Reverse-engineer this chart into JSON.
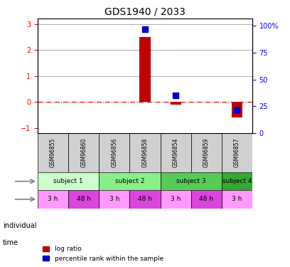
{
  "title": "GDS1940 / 2033",
  "samples": [
    "GSM96855",
    "GSM96860",
    "GSM96856",
    "GSM96858",
    "GSM96854",
    "GSM96859",
    "GSM96857"
  ],
  "log_ratio": [
    0,
    0,
    0,
    2.5,
    -0.1,
    0,
    -0.6
  ],
  "percentile_rank": [
    null,
    null,
    null,
    97,
    35,
    null,
    22
  ],
  "ylim_left": [
    -1.2,
    3.2
  ],
  "ylim_right": [
    0,
    106.67
  ],
  "yticks_left": [
    -1,
    0,
    1,
    2,
    3
  ],
  "yticks_right": [
    0,
    25,
    50,
    75,
    100
  ],
  "ytick_labels_right": [
    "0",
    "25",
    "50",
    "75",
    "100%"
  ],
  "hlines": [
    0,
    1,
    2,
    3
  ],
  "bar_color": "#c00000",
  "dot_color": "#0000cc",
  "zero_line_color": "#cc0000",
  "subjects": [
    {
      "label": "subject 1",
      "start": 0,
      "end": 2,
      "color": "#ccffcc"
    },
    {
      "label": "subject 2",
      "start": 2,
      "end": 4,
      "color": "#66ee66"
    },
    {
      "label": "subject 3",
      "start": 4,
      "end": 6,
      "color": "#66ee66"
    },
    {
      "label": "subject 4",
      "start": 6,
      "end": 7,
      "color": "#44cc44"
    }
  ],
  "times": [
    {
      "label": "3 h",
      "start": 0,
      "end": 1,
      "color": "#ff88ff"
    },
    {
      "label": "48 h",
      "start": 1,
      "end": 2,
      "color": "#ee44ee"
    },
    {
      "label": "3 h",
      "start": 2,
      "end": 3,
      "color": "#ff88ff"
    },
    {
      "label": "48 h",
      "start": 3,
      "end": 4,
      "color": "#ee44ee"
    },
    {
      "label": "3 h",
      "start": 4,
      "end": 5,
      "color": "#ff88ff"
    },
    {
      "label": "48 h",
      "start": 5,
      "end": 6,
      "color": "#ee44ee"
    },
    {
      "label": "3 h",
      "start": 6,
      "end": 7,
      "color": "#ff88ff"
    }
  ],
  "legend_items": [
    {
      "label": "log ratio",
      "color": "#c00000"
    },
    {
      "label": "percentile rank within the sample",
      "color": "#0000cc"
    }
  ],
  "subject_colors_light": "#ccffcc",
  "subject_colors_mid1": "#88ee88",
  "subject_colors_mid2": "#66dd66",
  "subject_colors_dark": "#44bb44",
  "time_light": "#ff99ff",
  "time_dark": "#dd44dd"
}
